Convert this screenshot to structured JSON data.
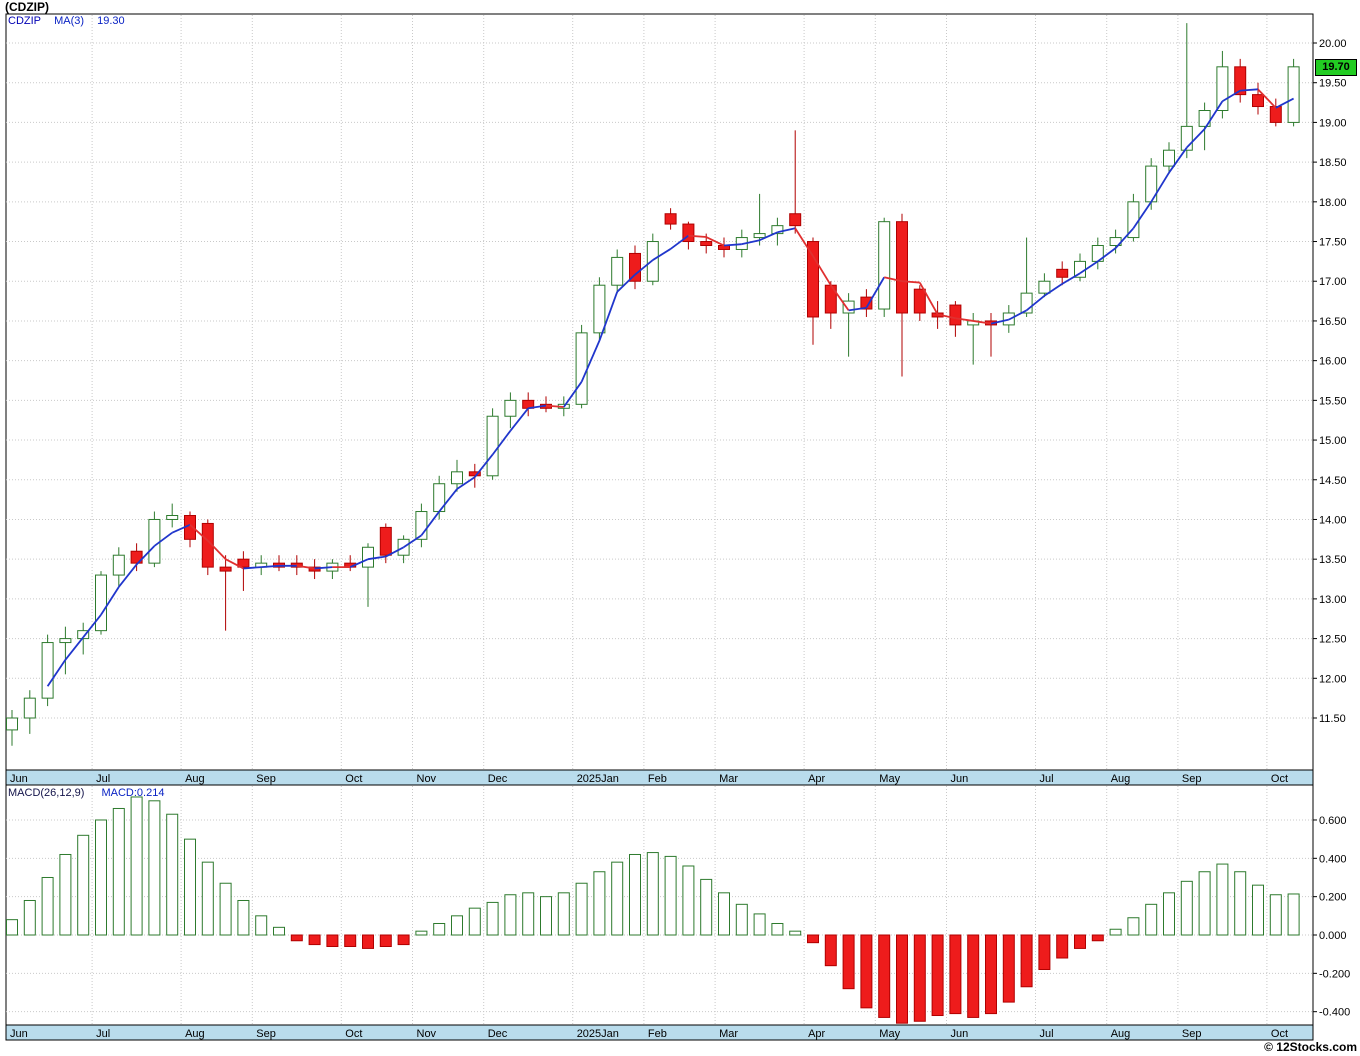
{
  "header": {
    "title": "(CDZIP)",
    "legend_symbol": "CDZIP",
    "legend_ma": "MA(3)",
    "legend_ma_value": "19.30"
  },
  "macd_panel": {
    "label": "MACD(26,12,9)",
    "value_label": "MACD:0.214"
  },
  "price_badge": "19.70",
  "watermark": "© 12Stocks.com",
  "colors": {
    "up": "#2d7a2d",
    "down": "#b00000",
    "down_fill": "#ee1c1c",
    "ma_up": "#2036cc",
    "ma_down": "#e03030",
    "grid": "#c9c9c9",
    "border": "#000000",
    "axis_strip": "#b9dcec"
  },
  "chart_data": [
    {
      "type": "candlestick",
      "title": "(CDZIP)",
      "interval": "weekly",
      "ma_period": 3,
      "price_axis": {
        "min": 11.5,
        "max": 20.0,
        "step": 0.5
      },
      "legend_position": "top-left",
      "grid": true,
      "months": [
        "Jun",
        "Jul",
        "Aug",
        "Sep",
        "Oct",
        "Nov",
        "Dec",
        "2025Jan",
        "Feb",
        "Mar",
        "Apr",
        "May",
        "Jun",
        "Jul",
        "Aug",
        "Sep",
        "Oct"
      ],
      "month_starts": [
        0,
        5,
        10,
        14,
        19,
        23,
        27,
        32,
        36,
        40,
        45,
        49,
        53,
        58,
        62,
        66,
        71
      ],
      "candles": [
        [
          11.35,
          11.6,
          11.15,
          11.5
        ],
        [
          11.5,
          11.85,
          11.3,
          11.75
        ],
        [
          11.75,
          12.55,
          11.65,
          12.45
        ],
        [
          12.45,
          12.65,
          12.05,
          12.5
        ],
        [
          12.5,
          12.7,
          12.3,
          12.6
        ],
        [
          12.6,
          13.35,
          12.55,
          13.3
        ],
        [
          13.3,
          13.65,
          13.15,
          13.55
        ],
        [
          13.6,
          13.7,
          13.35,
          13.45
        ],
        [
          13.45,
          14.1,
          13.4,
          14.0
        ],
        [
          14.0,
          14.2,
          13.9,
          14.05
        ],
        [
          14.05,
          14.1,
          13.65,
          13.75
        ],
        [
          13.95,
          14.0,
          13.3,
          13.4
        ],
        [
          13.4,
          13.55,
          12.6,
          13.35
        ],
        [
          13.5,
          13.6,
          13.1,
          13.4
        ],
        [
          13.4,
          13.55,
          13.3,
          13.45
        ],
        [
          13.45,
          13.55,
          13.35,
          13.4
        ],
        [
          13.45,
          13.55,
          13.3,
          13.4
        ],
        [
          13.4,
          13.5,
          13.25,
          13.35
        ],
        [
          13.35,
          13.5,
          13.25,
          13.45
        ],
        [
          13.45,
          13.55,
          13.35,
          13.4
        ],
        [
          13.4,
          13.7,
          12.9,
          13.65
        ],
        [
          13.9,
          13.95,
          13.45,
          13.55
        ],
        [
          13.55,
          13.8,
          13.45,
          13.75
        ],
        [
          13.75,
          14.2,
          13.65,
          14.1
        ],
        [
          14.1,
          14.55,
          14.0,
          14.45
        ],
        [
          14.45,
          14.75,
          14.35,
          14.6
        ],
        [
          14.6,
          14.7,
          14.4,
          14.55
        ],
        [
          14.55,
          15.4,
          14.5,
          15.3
        ],
        [
          15.3,
          15.6,
          15.15,
          15.5
        ],
        [
          15.5,
          15.6,
          15.3,
          15.4
        ],
        [
          15.45,
          15.55,
          15.35,
          15.4
        ],
        [
          15.4,
          15.55,
          15.3,
          15.45
        ],
        [
          15.45,
          16.45,
          15.4,
          16.35
        ],
        [
          16.35,
          17.05,
          16.25,
          16.95
        ],
        [
          16.95,
          17.4,
          16.85,
          17.3
        ],
        [
          17.35,
          17.45,
          16.9,
          17.0
        ],
        [
          17.0,
          17.6,
          16.95,
          17.5
        ],
        [
          17.85,
          17.92,
          17.65,
          17.72
        ],
        [
          17.72,
          17.75,
          17.4,
          17.5
        ],
        [
          17.5,
          17.6,
          17.35,
          17.45
        ],
        [
          17.45,
          17.55,
          17.3,
          17.4
        ],
        [
          17.4,
          17.65,
          17.3,
          17.55
        ],
        [
          17.55,
          18.1,
          17.45,
          17.6
        ],
        [
          17.6,
          17.8,
          17.45,
          17.7
        ],
        [
          17.85,
          18.9,
          17.6,
          17.7
        ],
        [
          17.5,
          17.55,
          16.2,
          16.55
        ],
        [
          16.95,
          17.0,
          16.4,
          16.6
        ],
        [
          16.6,
          16.85,
          16.05,
          16.75
        ],
        [
          16.8,
          16.9,
          16.55,
          16.65
        ],
        [
          16.65,
          17.8,
          16.55,
          17.75
        ],
        [
          17.75,
          17.85,
          15.8,
          16.6
        ],
        [
          16.9,
          16.95,
          16.5,
          16.6
        ],
        [
          16.6,
          16.75,
          16.4,
          16.55
        ],
        [
          16.7,
          16.75,
          16.3,
          16.45
        ],
        [
          16.45,
          16.6,
          15.95,
          16.5
        ],
        [
          16.5,
          16.6,
          16.05,
          16.45
        ],
        [
          16.45,
          16.7,
          16.35,
          16.6
        ],
        [
          16.6,
          17.55,
          16.55,
          16.85
        ],
        [
          16.85,
          17.1,
          16.8,
          17.0
        ],
        [
          17.15,
          17.25,
          16.95,
          17.05
        ],
        [
          17.05,
          17.35,
          17.0,
          17.25
        ],
        [
          17.25,
          17.55,
          17.15,
          17.45
        ],
        [
          17.45,
          17.65,
          17.35,
          17.55
        ],
        [
          17.55,
          18.1,
          17.5,
          18.0
        ],
        [
          18.0,
          18.55,
          17.9,
          18.45
        ],
        [
          18.45,
          18.75,
          18.35,
          18.65
        ],
        [
          18.65,
          20.25,
          18.55,
          18.95
        ],
        [
          18.95,
          19.25,
          18.65,
          19.15
        ],
        [
          19.15,
          19.9,
          19.05,
          19.7
        ],
        [
          19.7,
          19.8,
          19.25,
          19.35
        ],
        [
          19.35,
          19.5,
          19.1,
          19.2
        ],
        [
          19.2,
          19.3,
          18.95,
          19.0
        ],
        [
          19.0,
          19.8,
          18.95,
          19.7
        ]
      ]
    },
    {
      "type": "bar",
      "title": "MACD(26,12,9)",
      "axis": {
        "min": -0.4,
        "max": 0.6,
        "step": 0.2
      },
      "last_value": 0.214,
      "values": [
        0.08,
        0.18,
        0.3,
        0.42,
        0.52,
        0.6,
        0.66,
        0.72,
        0.7,
        0.63,
        0.5,
        0.38,
        0.27,
        0.18,
        0.1,
        0.04,
        -0.03,
        -0.05,
        -0.06,
        -0.06,
        -0.07,
        -0.06,
        -0.05,
        0.02,
        0.06,
        0.1,
        0.14,
        0.17,
        0.21,
        0.22,
        0.2,
        0.22,
        0.27,
        0.33,
        0.38,
        0.42,
        0.43,
        0.41,
        0.36,
        0.29,
        0.22,
        0.16,
        0.11,
        0.06,
        0.02,
        -0.04,
        -0.16,
        -0.28,
        -0.38,
        -0.43,
        -0.46,
        -0.45,
        -0.42,
        -0.41,
        -0.43,
        -0.41,
        -0.35,
        -0.27,
        -0.18,
        -0.12,
        -0.07,
        -0.03,
        0.03,
        0.09,
        0.16,
        0.22,
        0.28,
        0.33,
        0.37,
        0.33,
        0.26,
        0.21,
        0.214
      ]
    }
  ]
}
